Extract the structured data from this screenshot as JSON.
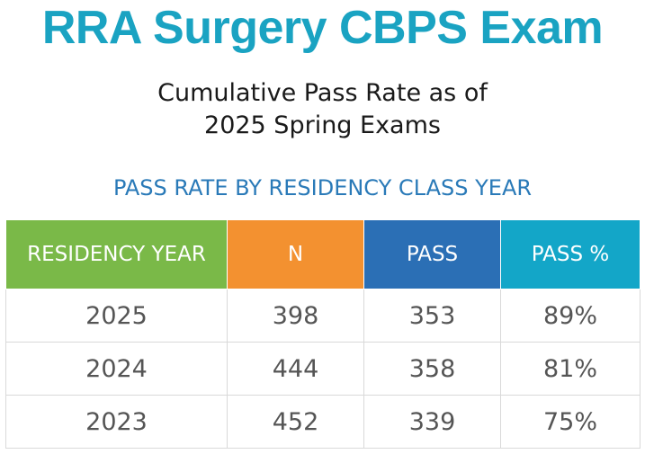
{
  "header": {
    "title": "RRA Surgery CBPS Exam",
    "subtitle_line1": "Cumulative Pass Rate as of",
    "subtitle_line2": "2025 Spring Exams",
    "section_heading": "PASS RATE BY RESIDENCY CLASS YEAR"
  },
  "colors": {
    "title": "#1aa3c2",
    "section_heading": "#2a7ab8",
    "header_residency_year": "#7ab948",
    "header_n": "#f39130",
    "header_pass": "#2b6fb5",
    "header_pass_pct": "#13a6c8"
  },
  "table": {
    "columns": [
      "RESIDENCY YEAR",
      "N",
      "PASS",
      "PASS %"
    ],
    "rows": [
      [
        "2025",
        "398",
        "353",
        "89%"
      ],
      [
        "2024",
        "444",
        "358",
        "81%"
      ],
      [
        "2023",
        "452",
        "339",
        "75%"
      ]
    ]
  }
}
